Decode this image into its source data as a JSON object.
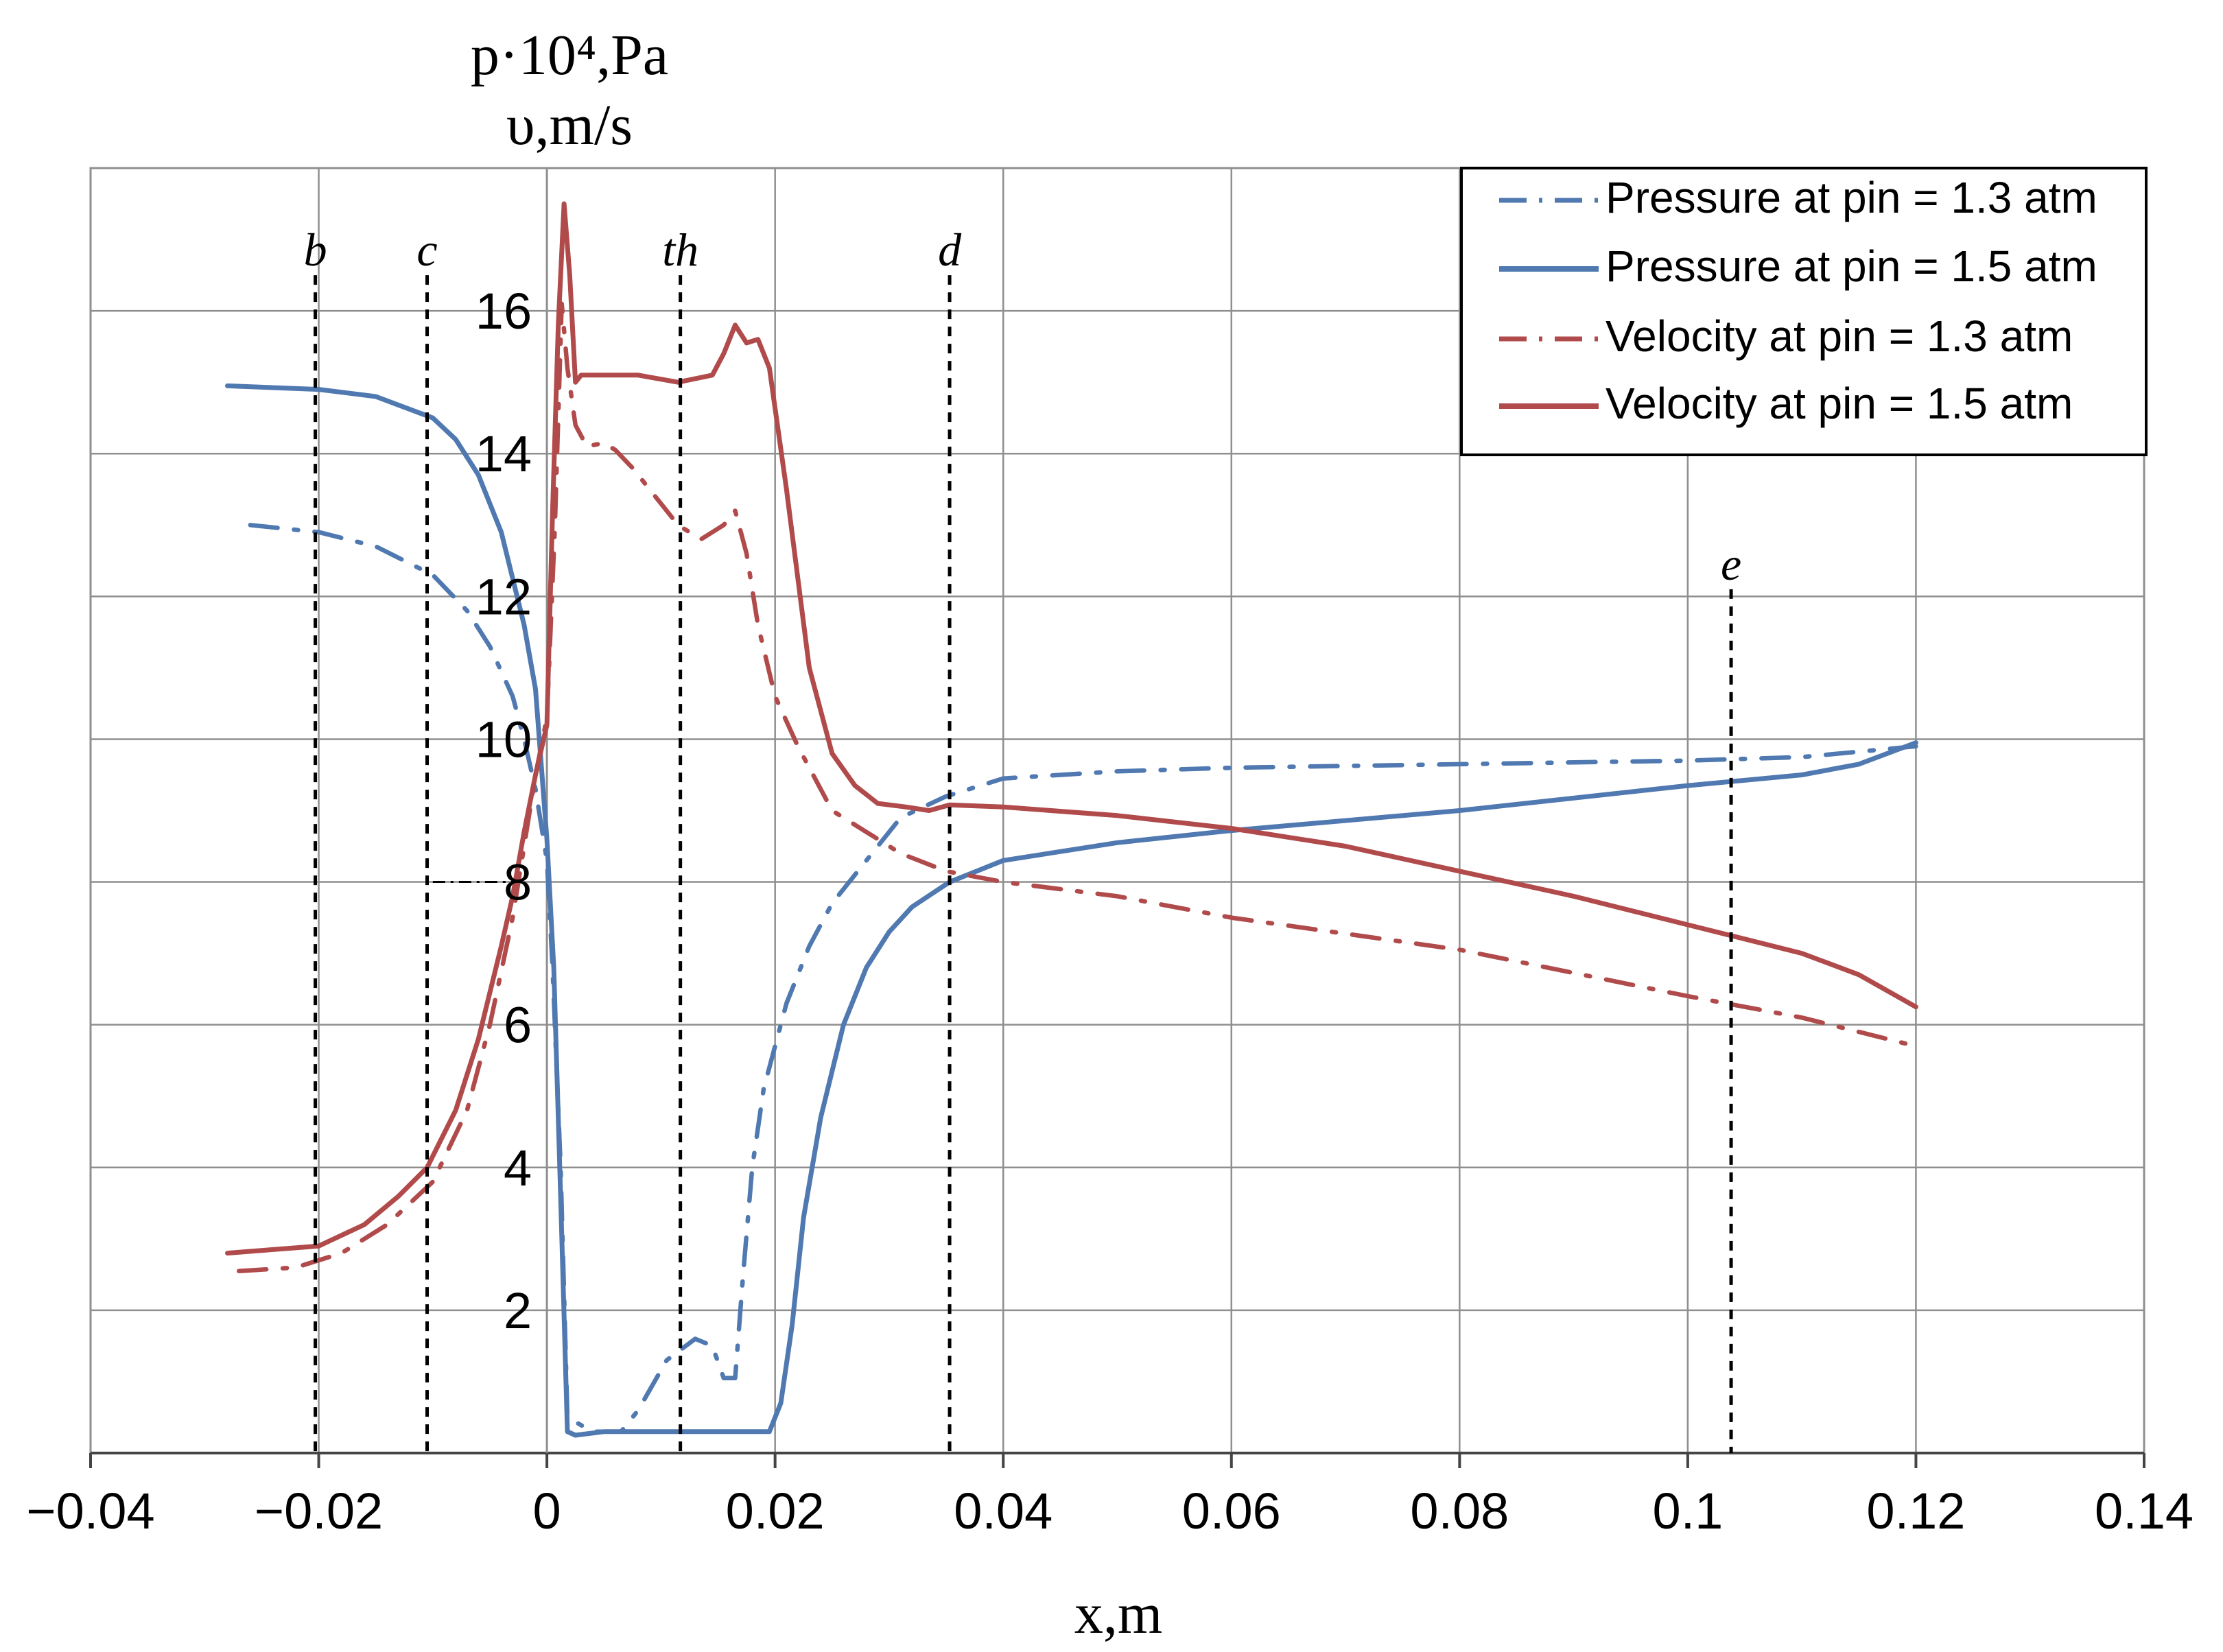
{
  "chart_data": {
    "type": "line",
    "title": "",
    "ylabel_line1": "p·10⁴,Pa",
    "ylabel_line2": "υ,m/s",
    "xlabel": "x,m",
    "xlim": [
      -0.04,
      0.14
    ],
    "ylim": [
      0,
      18
    ],
    "grid": true,
    "legend_position": "top-right",
    "x_ticks": [
      {
        "value": -0.04,
        "label": "−0.04"
      },
      {
        "value": -0.02,
        "label": "−0.02"
      },
      {
        "value": 0,
        "label": "0"
      },
      {
        "value": 0.02,
        "label": "0.02"
      },
      {
        "value": 0.04,
        "label": "0.04"
      },
      {
        "value": 0.06,
        "label": "0.06"
      },
      {
        "value": 0.08,
        "label": "0.08"
      },
      {
        "value": 0.1,
        "label": "0.1"
      },
      {
        "value": 0.12,
        "label": "0.12"
      },
      {
        "value": 0.14,
        "label": "0.14"
      }
    ],
    "y_ticks": [
      {
        "value": 2,
        "label": "2"
      },
      {
        "value": 4,
        "label": "4"
      },
      {
        "value": 6,
        "label": "6"
      },
      {
        "value": 8,
        "label": "8"
      },
      {
        "value": 10,
        "label": "10"
      },
      {
        "value": 12,
        "label": "12"
      },
      {
        "value": 14,
        "label": "14"
      },
      {
        "value": 16,
        "label": "16"
      }
    ],
    "markers": [
      {
        "label": "b",
        "x": -0.0203,
        "y_top": 16.5
      },
      {
        "label": "c",
        "x": -0.0105,
        "y_top": 16.5
      },
      {
        "label": "th",
        "x": 0.0117,
        "y_top": 16.5
      },
      {
        "label": "d",
        "x": 0.0353,
        "y_top": 16.5
      },
      {
        "label": "e",
        "x": 0.1038,
        "y_top": 12.1
      }
    ],
    "series": [
      {
        "name": "Pressure at pin = 1.3 atm",
        "color": "#4f79b0",
        "style": "dashdot",
        "x": [
          -0.026,
          -0.02,
          -0.015,
          -0.01,
          -0.007,
          -0.005,
          -0.003,
          -0.002,
          -0.001,
          0,
          0.0005,
          0.0012,
          0.0018,
          0.004,
          0.0065,
          0.008,
          0.0105,
          0.013,
          0.0145,
          0.0155,
          0.0165,
          0.0172,
          0.018,
          0.019,
          0.021,
          0.023,
          0.025,
          0.028,
          0.031,
          0.035,
          0.04,
          0.05,
          0.06,
          0.08,
          0.1,
          0.11,
          0.12
        ],
        "y": [
          13.0,
          12.9,
          12.7,
          12.3,
          11.8,
          11.3,
          10.6,
          10.0,
          9.3,
          8.3,
          6.8,
          4.0,
          0.5,
          0.3,
          0.3,
          0.6,
          1.3,
          1.6,
          1.5,
          1.05,
          1.05,
          2.5,
          4.0,
          5.1,
          6.3,
          7.1,
          7.7,
          8.3,
          8.9,
          9.2,
          9.45,
          9.55,
          9.6,
          9.65,
          9.7,
          9.75,
          9.9
        ]
      },
      {
        "name": "Pressure at pin = 1.5 atm",
        "color": "#4f79b0",
        "style": "solid",
        "x": [
          -0.028,
          -0.02,
          -0.015,
          -0.01,
          -0.008,
          -0.006,
          -0.004,
          -0.002,
          -0.001,
          0,
          0.0006,
          0.0012,
          0.0018,
          0.0025,
          0.005,
          0.01,
          0.015,
          0.0195,
          0.0205,
          0.0215,
          0.0225,
          0.024,
          0.026,
          0.028,
          0.03,
          0.032,
          0.0353,
          0.04,
          0.05,
          0.06,
          0.08,
          0.1,
          0.11,
          0.115,
          0.12
        ],
        "y": [
          14.95,
          14.9,
          14.8,
          14.5,
          14.2,
          13.7,
          12.9,
          11.6,
          10.7,
          8.6,
          6.8,
          3.6,
          0.3,
          0.25,
          0.3,
          0.3,
          0.3,
          0.3,
          0.7,
          1.8,
          3.3,
          4.7,
          6.0,
          6.8,
          7.3,
          7.65,
          8.0,
          8.3,
          8.55,
          8.72,
          9.0,
          9.35,
          9.5,
          9.65,
          9.95
        ]
      },
      {
        "name": "Velocity at pin = 1.3 atm",
        "color": "#b14b4b",
        "style": "dashdot",
        "x": [
          -0.027,
          -0.022,
          -0.018,
          -0.014,
          -0.01,
          -0.007,
          -0.005,
          -0.003,
          -0.002,
          -0.001,
          0,
          0.0007,
          0.0013,
          0.0018,
          0.0025,
          0.0035,
          0.005,
          0.006,
          0.0075,
          0.009,
          0.0115,
          0.0135,
          0.0155,
          0.0165,
          0.0175,
          0.0185,
          0.02,
          0.022,
          0.025,
          0.028,
          0.031,
          0.035,
          0.04,
          0.05,
          0.06,
          0.08,
          0.1,
          0.11,
          0.12
        ],
        "y": [
          2.55,
          2.6,
          2.8,
          3.2,
          3.8,
          4.8,
          6.0,
          7.5,
          8.5,
          9.5,
          10.3,
          13.0,
          16.1,
          15.2,
          14.4,
          14.1,
          14.15,
          14.05,
          13.8,
          13.5,
          13.0,
          12.8,
          13.0,
          13.2,
          12.6,
          11.6,
          10.6,
          9.9,
          9.0,
          8.7,
          8.4,
          8.15,
          8.0,
          7.8,
          7.5,
          7.05,
          6.4,
          6.1,
          5.7
        ]
      },
      {
        "name": "Velocity at pin = 1.5 atm",
        "color": "#b14b4b",
        "style": "solid",
        "x": [
          -0.028,
          -0.024,
          -0.02,
          -0.016,
          -0.013,
          -0.0105,
          -0.008,
          -0.006,
          -0.004,
          -0.003,
          -0.002,
          -0.001,
          0,
          0.0005,
          0.001,
          0.0015,
          0.002,
          0.0025,
          0.003,
          0.004,
          0.008,
          0.0115,
          0.0145,
          0.0155,
          0.0165,
          0.0175,
          0.0185,
          0.0195,
          0.021,
          0.023,
          0.025,
          0.027,
          0.029,
          0.0315,
          0.0335,
          0.0353,
          0.04,
          0.05,
          0.06,
          0.07,
          0.08,
          0.09,
          0.1,
          0.11,
          0.115,
          0.12
        ],
        "y": [
          2.8,
          2.85,
          2.9,
          3.2,
          3.6,
          4.0,
          4.8,
          5.8,
          7.1,
          7.8,
          8.7,
          9.5,
          10.2,
          13.2,
          15.8,
          17.5,
          16.5,
          15.0,
          15.1,
          15.1,
          15.1,
          15.0,
          15.1,
          15.4,
          15.8,
          15.55,
          15.6,
          15.2,
          13.5,
          11.0,
          9.8,
          9.35,
          9.1,
          9.05,
          9.0,
          9.08,
          9.05,
          8.93,
          8.75,
          8.5,
          8.15,
          7.8,
          7.4,
          7.0,
          6.7,
          6.25
        ]
      }
    ]
  }
}
